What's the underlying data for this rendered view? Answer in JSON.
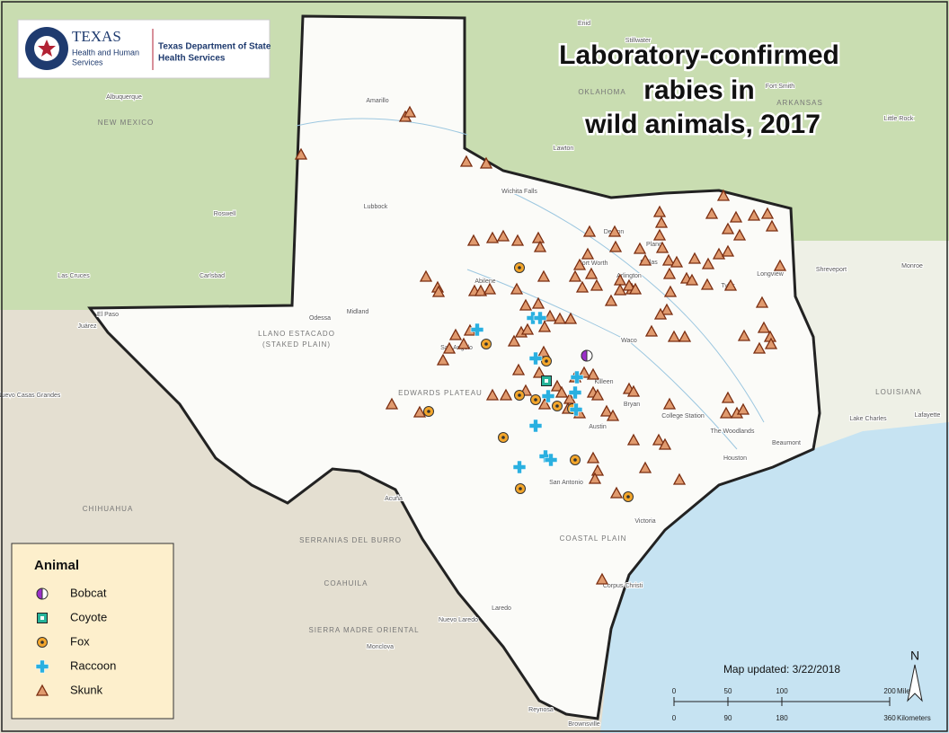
{
  "header": {
    "agency": [
      "TEXAS",
      "Health and Human",
      "Services"
    ],
    "department": [
      "Texas Department of State",
      "Health Services"
    ]
  },
  "title": [
    "Laboratory-confirmed",
    "rabies in",
    "wild animals, 2017"
  ],
  "legend": {
    "title": "Animal",
    "items": [
      "Bobcat",
      "Coyote",
      "Fox",
      "Raccoon",
      "Skunk"
    ]
  },
  "map_updated": "Map updated: 3/22/2018",
  "north": "N",
  "scale": {
    "miles": {
      "ticks": [
        0,
        50,
        100,
        200
      ],
      "unit": "Miles"
    },
    "kilometers": {
      "ticks": [
        0,
        90,
        180,
        360
      ],
      "unit": "Kilometers"
    }
  },
  "places": [
    "Amarillo",
    "Lubbock",
    "Wichita Falls",
    "Denton",
    "Plano",
    "Fort Worth",
    "Dallas",
    "Arlington",
    "Abilene",
    "Midland",
    "Odessa",
    "El Paso",
    "Juárez",
    "San Angelo",
    "Waco",
    "Killeen",
    "Austin",
    "Bryan",
    "College Station",
    "The Woodlands",
    "Houston",
    "Beaumont",
    "San Antonio",
    "Victoria",
    "Corpus Christi",
    "Laredo",
    "Nuevo Laredo",
    "Brownsville",
    "Reynosa",
    "Longview",
    "Tyler",
    "Shreveport",
    "Monroe",
    "Lake Charles",
    "Lafayette",
    "Roswell",
    "Las Cruces",
    "Carlsbad",
    "Albuquerque",
    "Lawton",
    "Enid",
    "Stillwater",
    "Fort Smith",
    "Little Rock",
    "Acuña",
    "Monclova",
    "Nuevo Casas Grandes"
  ],
  "regions": [
    "OKLAHOMA",
    "ARKANSAS",
    "NEW MEXICO",
    "LOUISIANA",
    "CHIHUAHUA",
    "COAHUILA",
    "SERRANIAS DEL BURRO",
    "SIERRA MADRE ORIENTAL",
    "LLANO ESTACADO",
    "(STAKED PLAIN)",
    "EDWARDS PLATEAU",
    "COASTAL PLAIN"
  ]
}
